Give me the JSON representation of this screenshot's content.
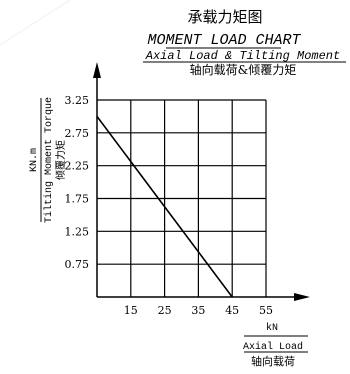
{
  "header": {
    "title_cn": "承载力矩图",
    "title_en": "MOMENT LOAD CHART",
    "subtitle_en": "Axial Load & Tilting Moment",
    "subtitle_cn": "轴向载荷&倾覆力矩"
  },
  "chart_data": {
    "type": "line",
    "title": "MOMENT LOAD CHART",
    "xlabel": "Axial Load",
    "xunit": "kN",
    "xlabel_cn": "轴向载荷",
    "ylabel": "Tilting Moment Torque",
    "yunit": "KN.m",
    "ylabel_cn": "倾覆力矩",
    "xlim": [
      5,
      55
    ],
    "ylim": [
      0.25,
      3.25
    ],
    "x_ticks": [
      15,
      25,
      35,
      45,
      55
    ],
    "y_ticks": [
      0.75,
      1.25,
      1.75,
      2.25,
      2.75,
      3.25
    ],
    "grid": true,
    "series": [
      {
        "values": [
          {
            "x": 5,
            "y": 3.0
          },
          {
            "x": 45,
            "y": 0.25
          }
        ]
      }
    ]
  },
  "colors": {
    "line": "#000000",
    "grid": "#000000",
    "background": "#ffffff"
  }
}
